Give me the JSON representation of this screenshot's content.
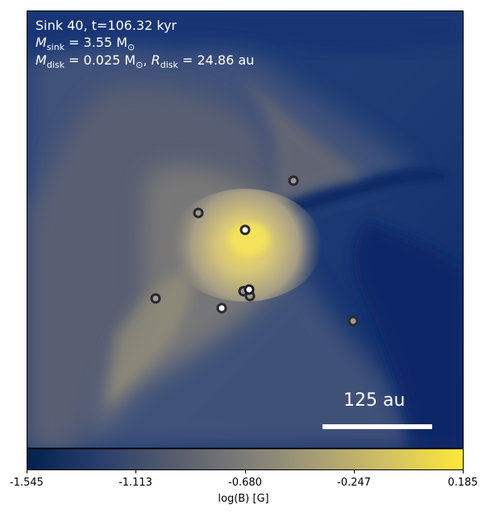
{
  "annotation": {
    "line1": "Sink 40, t=106.32 kyr",
    "line2_symbol": "M",
    "line2_sub": "sink",
    "line2_value": " = 3.55 M",
    "line2_unit_sub": "⊙",
    "line3_symbol": "M",
    "line3_sub": "disk",
    "line3_value": " = 0.025 M",
    "line3_unit_sub": "⊙",
    "line3_sep": ", ",
    "line3_r_symbol": "R",
    "line3_r_sub": "disk",
    "line3_r_value": " = 24.86 au"
  },
  "scale_bar": {
    "label": "125 au"
  },
  "colorbar": {
    "label": "log(B) [G]",
    "ticks": [
      "-1.545",
      "-1.113",
      "-0.680",
      "-0.247",
      "0.185"
    ],
    "colormap": "cividis",
    "colors": [
      "#00224e",
      "#575d6d",
      "#7d7c78",
      "#a69d75",
      "#fee838"
    ]
  },
  "sinks": [
    {
      "id": "sink-a",
      "style": "grey"
    },
    {
      "id": "sink-b",
      "style": "grey"
    },
    {
      "id": "sink-c",
      "style": "bright"
    },
    {
      "id": "sink-d",
      "style": "grey"
    },
    {
      "id": "sink-e",
      "style": "grey"
    },
    {
      "id": "sink-f",
      "style": "grey"
    },
    {
      "id": "sink-g",
      "style": "bright"
    },
    {
      "id": "sink-h",
      "style": "bright"
    },
    {
      "id": "sink-i",
      "style": "grey"
    }
  ]
}
